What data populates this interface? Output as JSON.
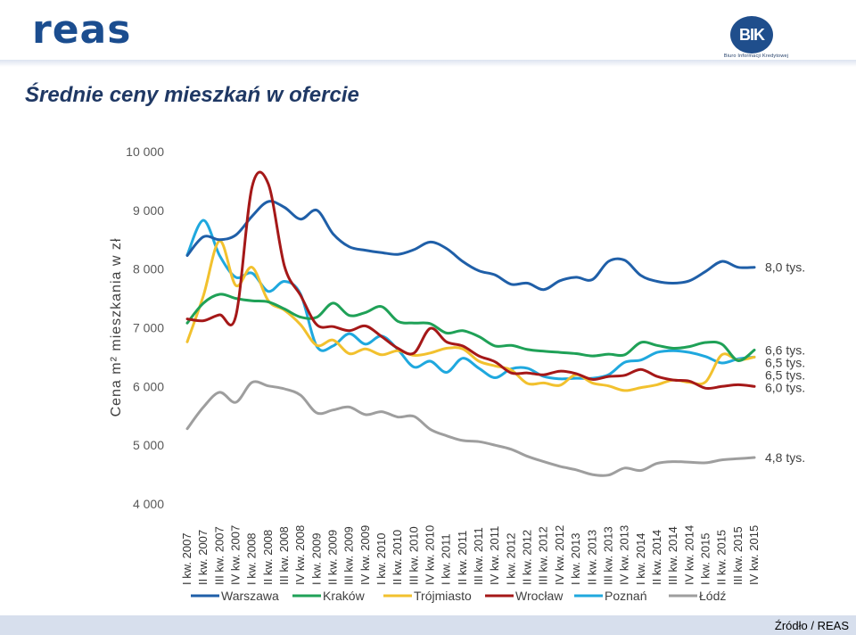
{
  "header": {
    "logo_text": "reas",
    "bik_logo_text": "BIK",
    "bik_subtitle": "Biuro Informacji Kredytowej"
  },
  "page_title": "Średnie ceny mieszkań w ofercie",
  "source_label": "Źródło / REAS",
  "colors": {
    "Warszawa": "#1f5fa8",
    "Kraków": "#1fa157",
    "Trójmiasto": "#f2c12e",
    "Wrocław": "#a51818",
    "Poznań": "#1fa8de",
    "Łódź": "#9e9e9e"
  },
  "chart_data": {
    "type": "line",
    "title": "Średnie ceny mieszkań w ofercie",
    "ylabel": "Cena m² mieszkania w zł",
    "xlabel": "",
    "ylim": [
      4000,
      10000
    ],
    "yticks": [
      4000,
      5000,
      6000,
      7000,
      8000,
      9000,
      10000
    ],
    "ytick_labels": [
      "4 000",
      "5 000",
      "6 000",
      "7 000",
      "8 000",
      "9 000",
      "10 000"
    ],
    "categories": [
      "I kw. 2007",
      "II kw. 2007",
      "III kw. 2007",
      "IV kw. 2007",
      "I kw. 2008",
      "II kw. 2008",
      "III kw. 2008",
      "IV kw. 2008",
      "I kw. 2009",
      "II kw. 2009",
      "III kw. 2009",
      "IV kw. 2009",
      "I kw. 2010",
      "II kw. 2010",
      "III kw. 2010",
      "IV kw. 2010",
      "I kw. 2011",
      "II kw. 2011",
      "III kw. 2011",
      "IV kw. 2011",
      "I kw. 2012",
      "II kw. 2012",
      "III kw. 2012",
      "IV kw. 2012",
      "I kw. 2013",
      "II kw. 2013",
      "III kw. 2013",
      "IV kw. 2013",
      "I kw. 2014",
      "II kw. 2014",
      "III kw. 2014",
      "IV kw. 2014",
      "I kw. 2015",
      "II kw. 2015",
      "III kw. 2015",
      "IV kw. 2015"
    ],
    "series": [
      {
        "name": "Warszawa",
        "end_label": "8,0 tys.",
        "values": [
          8230,
          8550,
          8500,
          8580,
          8900,
          9150,
          9050,
          8850,
          9000,
          8600,
          8380,
          8320,
          8280,
          8250,
          8330,
          8460,
          8350,
          8130,
          7970,
          7900,
          7740,
          7760,
          7650,
          7800,
          7860,
          7820,
          8130,
          8150,
          7890,
          7790,
          7760,
          7800,
          7960,
          8130,
          8030,
          8030
        ]
      },
      {
        "name": "Kraków",
        "end_label": "6,6 tys.",
        "values": [
          7080,
          7420,
          7570,
          7500,
          7460,
          7440,
          7320,
          7180,
          7180,
          7420,
          7210,
          7260,
          7360,
          7110,
          7080,
          7070,
          6910,
          6950,
          6850,
          6690,
          6700,
          6630,
          6600,
          6580,
          6560,
          6520,
          6550,
          6540,
          6750,
          6700,
          6650,
          6680,
          6750,
          6720,
          6440,
          6620
        ]
      },
      {
        "name": "Trójmiasto",
        "end_label": "6,5 tys.",
        "values": [
          6760,
          7550,
          8480,
          7720,
          8030,
          7460,
          7300,
          7050,
          6700,
          6790,
          6560,
          6640,
          6540,
          6610,
          6530,
          6570,
          6650,
          6640,
          6430,
          6350,
          6280,
          6050,
          6060,
          6020,
          6200,
          6060,
          6010,
          5930,
          5980,
          6030,
          6110,
          6070,
          6080,
          6540,
          6450,
          6500
        ]
      },
      {
        "name": "Wrocław",
        "end_label": "6,0 tys.",
        "values": [
          7150,
          7120,
          7220,
          7200,
          9400,
          9450,
          8050,
          7550,
          7050,
          7020,
          6950,
          7030,
          6850,
          6650,
          6570,
          6990,
          6760,
          6690,
          6520,
          6420,
          6230,
          6230,
          6200,
          6260,
          6220,
          6120,
          6170,
          6190,
          6290,
          6170,
          6110,
          6090,
          5970,
          6000,
          6030,
          6000
        ]
      },
      {
        "name": "Poznań",
        "end_label": "6,5 tys.",
        "values": [
          8240,
          8830,
          8230,
          7860,
          7930,
          7620,
          7790,
          7570,
          6680,
          6690,
          6900,
          6720,
          6860,
          6630,
          6330,
          6430,
          6240,
          6480,
          6310,
          6150,
          6300,
          6310,
          6170,
          6130,
          6140,
          6140,
          6200,
          6410,
          6450,
          6580,
          6610,
          6580,
          6510,
          6400,
          6470,
          6500
        ]
      },
      {
        "name": "Łódź",
        "end_label": "4,8 tys.",
        "values": [
          5280,
          5650,
          5900,
          5730,
          6070,
          6010,
          5960,
          5850,
          5550,
          5600,
          5650,
          5520,
          5570,
          5480,
          5490,
          5270,
          5160,
          5080,
          5060,
          5000,
          4930,
          4810,
          4720,
          4640,
          4580,
          4500,
          4490,
          4610,
          4570,
          4690,
          4720,
          4710,
          4700,
          4750,
          4770,
          4790
        ]
      }
    ],
    "legend_position": "bottom",
    "grid": false
  }
}
